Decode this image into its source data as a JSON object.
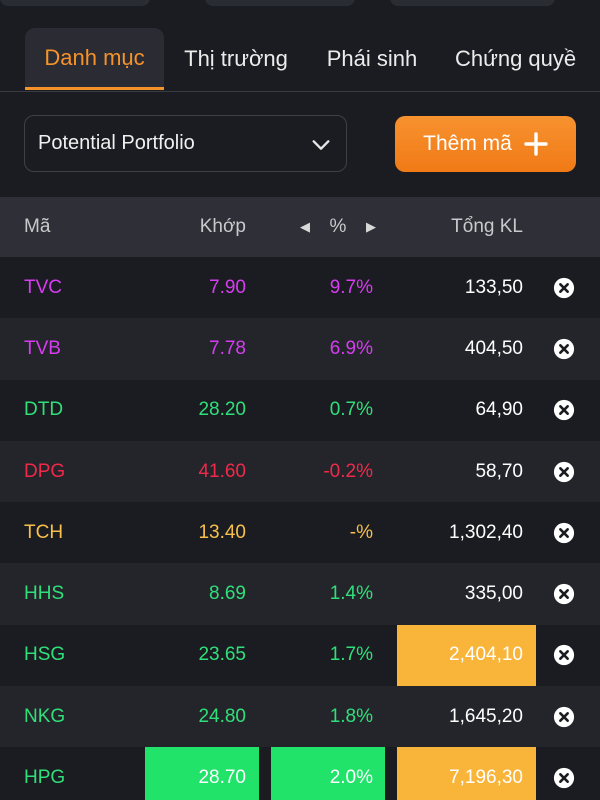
{
  "tabs": [
    {
      "label": "Danh mục",
      "active": true
    },
    {
      "label": "Thị trường",
      "active": false
    },
    {
      "label": "Phái sinh",
      "active": false
    },
    {
      "label": "Chứng quyề",
      "active": false
    }
  ],
  "portfolio_select": {
    "value": "Potential Portfolio",
    "icon": "chevron-down-icon"
  },
  "add_button": {
    "label": "Thêm mã",
    "icon": "plus-icon"
  },
  "table": {
    "headers": {
      "code": "Mã",
      "match": "Khớp",
      "pct": "%",
      "volume": "Tổng KL"
    },
    "header_arrows": {
      "left": "◀",
      "right": "▶"
    },
    "rows": [
      {
        "code": "TVC",
        "match": "7.90",
        "pct": "9.7%",
        "volume": "133,50",
        "color": "#d63cf0",
        "hl_match": "",
        "hl_pct": "",
        "hl_vol": ""
      },
      {
        "code": "TVB",
        "match": "7.78",
        "pct": "6.9%",
        "volume": "404,50",
        "color": "#d63cf0",
        "hl_match": "",
        "hl_pct": "",
        "hl_vol": ""
      },
      {
        "code": "DTD",
        "match": "28.20",
        "pct": "0.7%",
        "volume": "64,90",
        "color": "#2fe07a",
        "hl_match": "",
        "hl_pct": "",
        "hl_vol": ""
      },
      {
        "code": "DPG",
        "match": "41.60",
        "pct": "-0.2%",
        "volume": "58,70",
        "color": "#f0294a",
        "hl_match": "",
        "hl_pct": "",
        "hl_vol": ""
      },
      {
        "code": "TCH",
        "match": "13.40",
        "pct": "-%",
        "volume": "1,302,40",
        "color": "#f7c04c",
        "hl_match": "",
        "hl_pct": "",
        "hl_vol": ""
      },
      {
        "code": "HHS",
        "match": "8.69",
        "pct": "1.4%",
        "volume": "335,00",
        "color": "#2fe07a",
        "hl_match": "",
        "hl_pct": "",
        "hl_vol": ""
      },
      {
        "code": "HSG",
        "match": "23.65",
        "pct": "1.7%",
        "volume": "2,404,10",
        "color": "#2fe07a",
        "hl_match": "",
        "hl_pct": "",
        "hl_vol": "yellow"
      },
      {
        "code": "NKG",
        "match": "24.80",
        "pct": "1.8%",
        "volume": "1,645,20",
        "color": "#2fe07a",
        "hl_match": "",
        "hl_pct": "",
        "hl_vol": ""
      },
      {
        "code": "HPG",
        "match": "28.70",
        "pct": "2.0%",
        "volume": "7,196,30",
        "color": "#2fe07a",
        "hl_match": "green",
        "hl_pct": "green",
        "hl_vol": "yellow"
      }
    ]
  },
  "colors": {
    "accent": "#f6922a",
    "background": "#1b1c21",
    "header_bg": "#2f3037",
    "highlight_green": "#21e36a",
    "highlight_yellow": "#f9b53a"
  }
}
